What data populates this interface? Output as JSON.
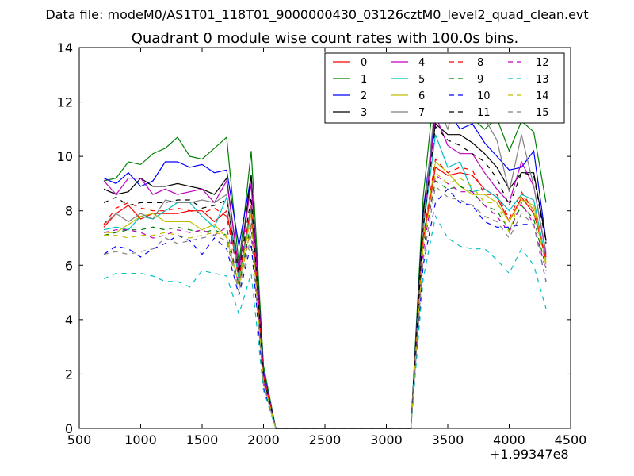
{
  "chart_data": {
    "type": "line",
    "suptitle": "Data file: modeM0/AS1T01_118T01_9000000430_03126cztM0_level2_quad_clean.evt",
    "title": "Quadrant 0 module wise count rates with 100.0s bins.",
    "xlabel": "",
    "ylabel": "",
    "xlim": [
      500,
      4500
    ],
    "ylim": [
      0,
      14
    ],
    "xticks": [
      500,
      1000,
      1500,
      2000,
      2500,
      3000,
      3500,
      4000,
      4500
    ],
    "yticks": [
      0,
      2,
      4,
      6,
      8,
      10,
      12,
      14
    ],
    "x_offset_label": "+1.99347e8",
    "legend_position": "top-right",
    "grid": false,
    "x": [
      700,
      800,
      900,
      1000,
      1100,
      1200,
      1300,
      1400,
      1500,
      1600,
      1700,
      1800,
      1900,
      2000,
      2100,
      2200,
      2300,
      2400,
      2500,
      2600,
      2700,
      2800,
      2900,
      3000,
      3100,
      3200,
      3300,
      3400,
      3500,
      3600,
      3700,
      3800,
      3900,
      4000,
      4100,
      4200,
      4300
    ],
    "series": [
      {
        "name": "0",
        "color": "#ff0000",
        "dash": "solid",
        "values": [
          7.4,
          7.9,
          8.2,
          7.7,
          7.9,
          7.9,
          7.9,
          8.0,
          8.0,
          7.6,
          8.0,
          5.6,
          8.0,
          1.9,
          0,
          0,
          0,
          0,
          0,
          0,
          0,
          0,
          0,
          0,
          0,
          0,
          6.9,
          9.6,
          9.3,
          9.4,
          9.3,
          8.8,
          8.5,
          7.6,
          8.5,
          7.9,
          6.3
        ]
      },
      {
        "name": "1",
        "color": "#008000",
        "dash": "solid",
        "values": [
          9.1,
          9.2,
          9.8,
          9.7,
          10.1,
          10.3,
          10.7,
          10.0,
          9.9,
          10.3,
          10.7,
          6.0,
          10.2,
          2.3,
          0,
          0,
          0,
          0,
          0,
          0,
          0,
          0,
          0,
          0,
          0,
          0,
          8.5,
          12.9,
          11.7,
          11.6,
          11.4,
          11.0,
          11.4,
          10.2,
          11.3,
          10.9,
          8.3
        ]
      },
      {
        "name": "2",
        "color": "#0000ff",
        "dash": "solid",
        "values": [
          9.2,
          9.0,
          9.4,
          8.9,
          9.1,
          9.8,
          9.8,
          9.6,
          9.7,
          9.4,
          9.5,
          6.7,
          9.3,
          2.1,
          0,
          0,
          0,
          0,
          0,
          0,
          0,
          0,
          0,
          0,
          0,
          0,
          8.0,
          11.6,
          11.7,
          11.0,
          11.2,
          10.5,
          10.0,
          9.5,
          9.6,
          10.2,
          6.9
        ]
      },
      {
        "name": "3",
        "color": "#000000",
        "dash": "solid",
        "values": [
          8.8,
          8.6,
          8.7,
          9.2,
          8.9,
          8.9,
          9.0,
          8.9,
          8.8,
          8.6,
          9.2,
          5.8,
          9.3,
          2.0,
          0,
          0,
          0,
          0,
          0,
          0,
          0,
          0,
          0,
          0,
          0,
          0,
          7.9,
          11.2,
          10.8,
          10.8,
          10.5,
          10.1,
          9.6,
          8.8,
          9.4,
          9.4,
          6.9
        ]
      },
      {
        "name": "4",
        "color": "#bf00bf",
        "dash": "solid",
        "values": [
          9.1,
          8.6,
          9.2,
          9.2,
          8.6,
          8.8,
          8.6,
          8.7,
          8.8,
          8.3,
          9.1,
          5.8,
          9.0,
          2.0,
          0,
          0,
          0,
          0,
          0,
          0,
          0,
          0,
          0,
          0,
          0,
          0,
          7.3,
          11.5,
          10.4,
          10.1,
          10.1,
          9.4,
          8.8,
          8.3,
          9.8,
          8.9,
          6.4
        ]
      },
      {
        "name": "5",
        "color": "#00bfbf",
        "dash": "solid",
        "values": [
          7.3,
          7.4,
          7.3,
          7.8,
          7.7,
          8.0,
          8.3,
          8.3,
          7.8,
          7.4,
          8.5,
          5.4,
          8.1,
          1.8,
          0,
          0,
          0,
          0,
          0,
          0,
          0,
          0,
          0,
          0,
          0,
          0,
          7.3,
          10.8,
          9.6,
          9.8,
          8.7,
          8.8,
          8.5,
          8.0,
          8.6,
          8.4,
          6.2
        ]
      },
      {
        "name": "6",
        "color": "#bfbf00",
        "dash": "solid",
        "values": [
          7.2,
          7.2,
          7.5,
          7.8,
          7.9,
          7.6,
          7.6,
          7.6,
          7.3,
          7.5,
          7.0,
          5.3,
          7.9,
          1.8,
          0,
          0,
          0,
          0,
          0,
          0,
          0,
          0,
          0,
          0,
          0,
          0,
          7.0,
          9.8,
          9.4,
          8.9,
          8.6,
          8.6,
          8.3,
          7.6,
          8.4,
          8.2,
          6.1
        ]
      },
      {
        "name": "7",
        "color": "#808080",
        "dash": "solid",
        "values": [
          7.5,
          7.9,
          7.6,
          7.9,
          7.7,
          8.4,
          8.3,
          8.3,
          8.4,
          8.3,
          8.6,
          5.6,
          8.2,
          1.9,
          0,
          0,
          0,
          0,
          0,
          0,
          0,
          0,
          0,
          0,
          0,
          0,
          7.5,
          12.1,
          11.0,
          12.7,
          11.8,
          11.4,
          10.6,
          8.7,
          10.8,
          8.9,
          6.5
        ]
      },
      {
        "name": "8",
        "color": "#ff0000",
        "dash": "dashed",
        "values": [
          7.5,
          8.1,
          8.3,
          8.1,
          8.0,
          8.0,
          8.1,
          8.0,
          7.9,
          8.1,
          7.8,
          5.5,
          8.2,
          1.9,
          0,
          0,
          0,
          0,
          0,
          0,
          0,
          0,
          0,
          0,
          0,
          0,
          7.0,
          9.9,
          9.4,
          9.6,
          9.5,
          8.6,
          8.6,
          7.7,
          8.7,
          8.0,
          6.2
        ]
      },
      {
        "name": "9",
        "color": "#008000",
        "dash": "dashed",
        "values": [
          7.1,
          7.2,
          7.3,
          7.3,
          7.4,
          7.3,
          7.4,
          7.3,
          7.2,
          7.3,
          7.1,
          5.2,
          7.6,
          1.7,
          0,
          0,
          0,
          0,
          0,
          0,
          0,
          0,
          0,
          0,
          0,
          0,
          6.7,
          9.1,
          8.8,
          8.9,
          8.7,
          8.2,
          8.0,
          7.3,
          8.2,
          7.7,
          5.9
        ]
      },
      {
        "name": "10",
        "color": "#0000ff",
        "dash": "dashed",
        "values": [
          6.4,
          6.7,
          6.6,
          6.3,
          6.6,
          6.8,
          7.1,
          6.9,
          6.4,
          7.0,
          6.6,
          4.9,
          6.8,
          1.5,
          0,
          0,
          0,
          0,
          0,
          0,
          0,
          0,
          0,
          0,
          0,
          0,
          6.0,
          8.3,
          8.8,
          8.3,
          8.2,
          7.6,
          7.4,
          7.4,
          7.5,
          7.5,
          5.4
        ]
      },
      {
        "name": "11",
        "color": "#000000",
        "dash": "dashed",
        "values": [
          8.3,
          8.5,
          8.2,
          8.3,
          8.3,
          8.3,
          8.4,
          8.4,
          8.1,
          8.2,
          8.4,
          5.7,
          8.5,
          1.9,
          0,
          0,
          0,
          0,
          0,
          0,
          0,
          0,
          0,
          0,
          0,
          0,
          7.4,
          11.1,
          10.6,
          10.4,
          10.1,
          9.8,
          9.2,
          8.2,
          9.4,
          9.3,
          6.8
        ]
      },
      {
        "name": "12",
        "color": "#bf00bf",
        "dash": "dashed",
        "values": [
          7.2,
          7.3,
          7.3,
          7.2,
          7.0,
          7.1,
          7.3,
          7.2,
          7.3,
          7.1,
          7.4,
          5.2,
          7.4,
          1.7,
          0,
          0,
          0,
          0,
          0,
          0,
          0,
          0,
          0,
          0,
          0,
          0,
          6.5,
          9.3,
          9.0,
          8.7,
          8.7,
          8.2,
          7.8,
          7.2,
          8.3,
          7.5,
          5.8
        ]
      },
      {
        "name": "13",
        "color": "#00bfbf",
        "dash": "dashed",
        "values": [
          5.5,
          5.7,
          5.7,
          5.7,
          5.6,
          5.4,
          5.4,
          5.2,
          5.8,
          5.7,
          5.6,
          4.2,
          5.7,
          1.4,
          0,
          0,
          0,
          0,
          0,
          0,
          0,
          0,
          0,
          0,
          0,
          0,
          5.5,
          7.8,
          7.0,
          6.7,
          6.6,
          6.6,
          6.2,
          5.7,
          6.6,
          6.0,
          4.4
        ]
      },
      {
        "name": "14",
        "color": "#bfbf00",
        "dash": "dashed",
        "values": [
          7.1,
          7.1,
          7.0,
          7.1,
          7.1,
          7.2,
          7.1,
          7.0,
          7.1,
          7.2,
          7.1,
          5.1,
          7.5,
          1.7,
          0,
          0,
          0,
          0,
          0,
          0,
          0,
          0,
          0,
          0,
          0,
          0,
          6.7,
          9.4,
          9.0,
          9.2,
          8.9,
          8.3,
          8.3,
          7.2,
          8.6,
          8.0,
          6.0
        ]
      },
      {
        "name": "15",
        "color": "#808080",
        "dash": "dashed",
        "values": [
          6.4,
          6.5,
          6.4,
          6.5,
          6.6,
          7.0,
          6.8,
          6.9,
          7.0,
          7.1,
          6.9,
          5.0,
          7.1,
          1.6,
          0,
          0,
          0,
          0,
          0,
          0,
          0,
          0,
          0,
          0,
          0,
          0,
          6.2,
          8.9,
          8.5,
          8.4,
          8.2,
          7.8,
          7.6,
          7.0,
          7.9,
          7.5,
          5.4
        ]
      }
    ]
  }
}
